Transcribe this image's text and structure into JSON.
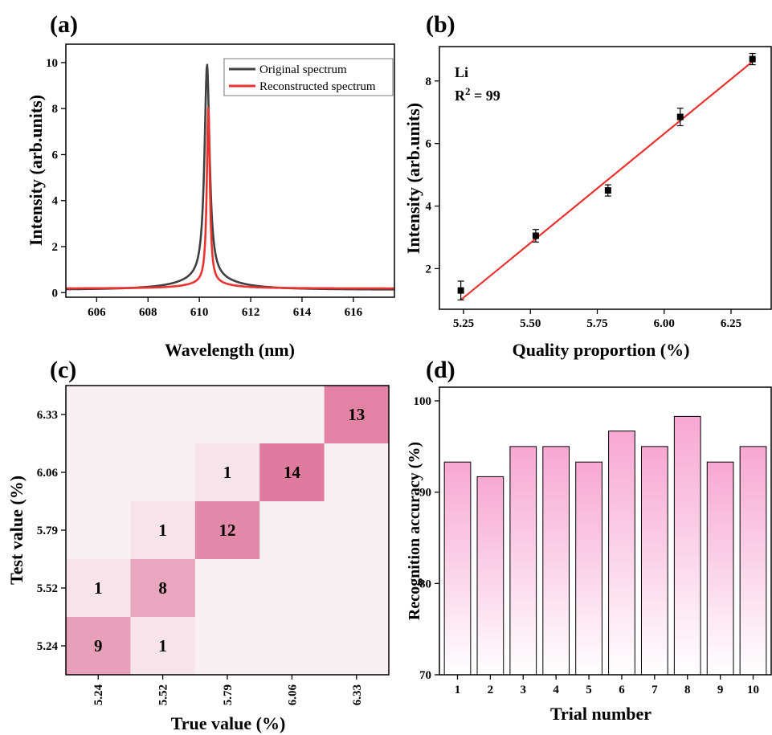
{
  "panels": {
    "a": "(a)",
    "b": "(b)",
    "c": "(c)",
    "d": "(d)"
  },
  "chart_data": [
    {
      "id": "a",
      "type": "line",
      "xlabel": "Wavelength (nm)",
      "ylabel": "Intensity (arb.units)",
      "xlim": [
        604.8,
        617.6
      ],
      "ylim": [
        -0.2,
        10.8
      ],
      "xticks": [
        606,
        608,
        610,
        612,
        614,
        616
      ],
      "yticks": [
        0,
        2,
        4,
        6,
        8,
        10
      ],
      "legend_position": "top-right",
      "series": [
        {
          "name": "Original spectrum",
          "color": "#404040",
          "center": 610.3,
          "peak": 9.3,
          "hwhm": 0.12,
          "baseline": 0.12,
          "tilt": 0.05,
          "points": [
            [
              604.8,
              0.32
            ],
            [
              605.5,
              0.35
            ],
            [
              606.5,
              0.45
            ],
            [
              607.5,
              0.6
            ],
            [
              608.5,
              0.85
            ],
            [
              609.2,
              1.25
            ],
            [
              609.7,
              2.1
            ],
            [
              610.0,
              3.8
            ],
            [
              610.15,
              6.2
            ],
            [
              610.3,
              9.5
            ],
            [
              610.45,
              6.0
            ],
            [
              610.6,
              3.6
            ],
            [
              610.9,
              1.8
            ],
            [
              611.5,
              0.95
            ],
            [
              612.5,
              0.55
            ],
            [
              613.5,
              0.4
            ],
            [
              614.5,
              0.3
            ],
            [
              615.5,
              0.27
            ],
            [
              616.5,
              0.24
            ],
            [
              617.6,
              0.22
            ]
          ]
        },
        {
          "name": "Reconstructed spectrum",
          "color": "#e8332f",
          "center": 610.35,
          "peak": 7.65,
          "hwhm": 0.07,
          "baseline": 0.18,
          "tilt": 0.03,
          "points": [
            [
              604.8,
              0.22
            ],
            [
              605.5,
              0.24
            ],
            [
              606.5,
              0.27
            ],
            [
              607.5,
              0.33
            ],
            [
              608.5,
              0.42
            ],
            [
              609.2,
              0.6
            ],
            [
              609.7,
              1.0
            ],
            [
              610.0,
              2.0
            ],
            [
              610.2,
              4.2
            ],
            [
              610.35,
              7.85
            ],
            [
              610.5,
              3.8
            ],
            [
              610.7,
              1.6
            ],
            [
              611.0,
              0.8
            ],
            [
              611.5,
              0.5
            ],
            [
              612.5,
              0.32
            ],
            [
              613.5,
              0.26
            ],
            [
              614.5,
              0.23
            ],
            [
              615.5,
              0.21
            ],
            [
              616.5,
              0.2
            ],
            [
              617.6,
              0.19
            ]
          ]
        }
      ]
    },
    {
      "id": "b",
      "type": "scatter",
      "xlabel": "Quality  proportion (%)",
      "ylabel": "Intensity (arb.units)",
      "xlim": [
        5.16,
        6.4
      ],
      "ylim": [
        0.7,
        9.1
      ],
      "xticks": [
        "5.25",
        "5.50",
        "5.75",
        "6.00",
        "6.25"
      ],
      "yticks": [
        "2",
        "4",
        "6",
        "8"
      ],
      "annotation_element": "Li",
      "annotation_r2_base": "R",
      "annotation_r2_exp": "2",
      "annotation_r2_value": " = 99",
      "points": [
        {
          "x": 5.24,
          "y": 1.3,
          "err": 0.3
        },
        {
          "x": 5.52,
          "y": 3.05,
          "err": 0.2
        },
        {
          "x": 5.79,
          "y": 4.5,
          "err": 0.18
        },
        {
          "x": 6.06,
          "y": 6.85,
          "err": 0.28
        },
        {
          "x": 6.33,
          "y": 8.7,
          "err": 0.18
        }
      ],
      "fit": {
        "x0": 5.24,
        "y0": 1.0,
        "x1": 6.33,
        "y1": 8.62,
        "color": "#e8332f"
      }
    },
    {
      "id": "c",
      "type": "heatmap",
      "xlabel": "True value (%)",
      "ylabel": "Test value (%)",
      "categories": [
        "5.24",
        "5.52",
        "5.79",
        "6.06",
        "6.33"
      ],
      "max_value": 14,
      "cells": [
        {
          "x": 0,
          "y": 0,
          "value": 9
        },
        {
          "x": 1,
          "y": 0,
          "value": 1
        },
        {
          "x": 0,
          "y": 1,
          "value": 1
        },
        {
          "x": 1,
          "y": 1,
          "value": 8
        },
        {
          "x": 1,
          "y": 2,
          "value": 1
        },
        {
          "x": 2,
          "y": 2,
          "value": 12
        },
        {
          "x": 2,
          "y": 3,
          "value": 1
        },
        {
          "x": 3,
          "y": 3,
          "value": 14
        },
        {
          "x": 4,
          "y": 4,
          "value": 13
        }
      ],
      "color_low": "#f9f0f3",
      "color_high": "#e07ba0"
    },
    {
      "id": "d",
      "type": "bar",
      "xlabel": "Trial number",
      "ylabel": "Recognition accuracy (%)",
      "categories": [
        "1",
        "2",
        "3",
        "4",
        "5",
        "6",
        "7",
        "8",
        "9",
        "10"
      ],
      "values": [
        93.3,
        91.7,
        95.0,
        95.0,
        93.3,
        96.7,
        95.0,
        98.3,
        93.3,
        95.0
      ],
      "ylim": [
        70,
        101.5
      ],
      "yticks": [
        "70",
        "80",
        "90",
        "100"
      ],
      "bar_color_top": "#f7a8d2",
      "bar_color_bottom": "#ffffff"
    }
  ]
}
